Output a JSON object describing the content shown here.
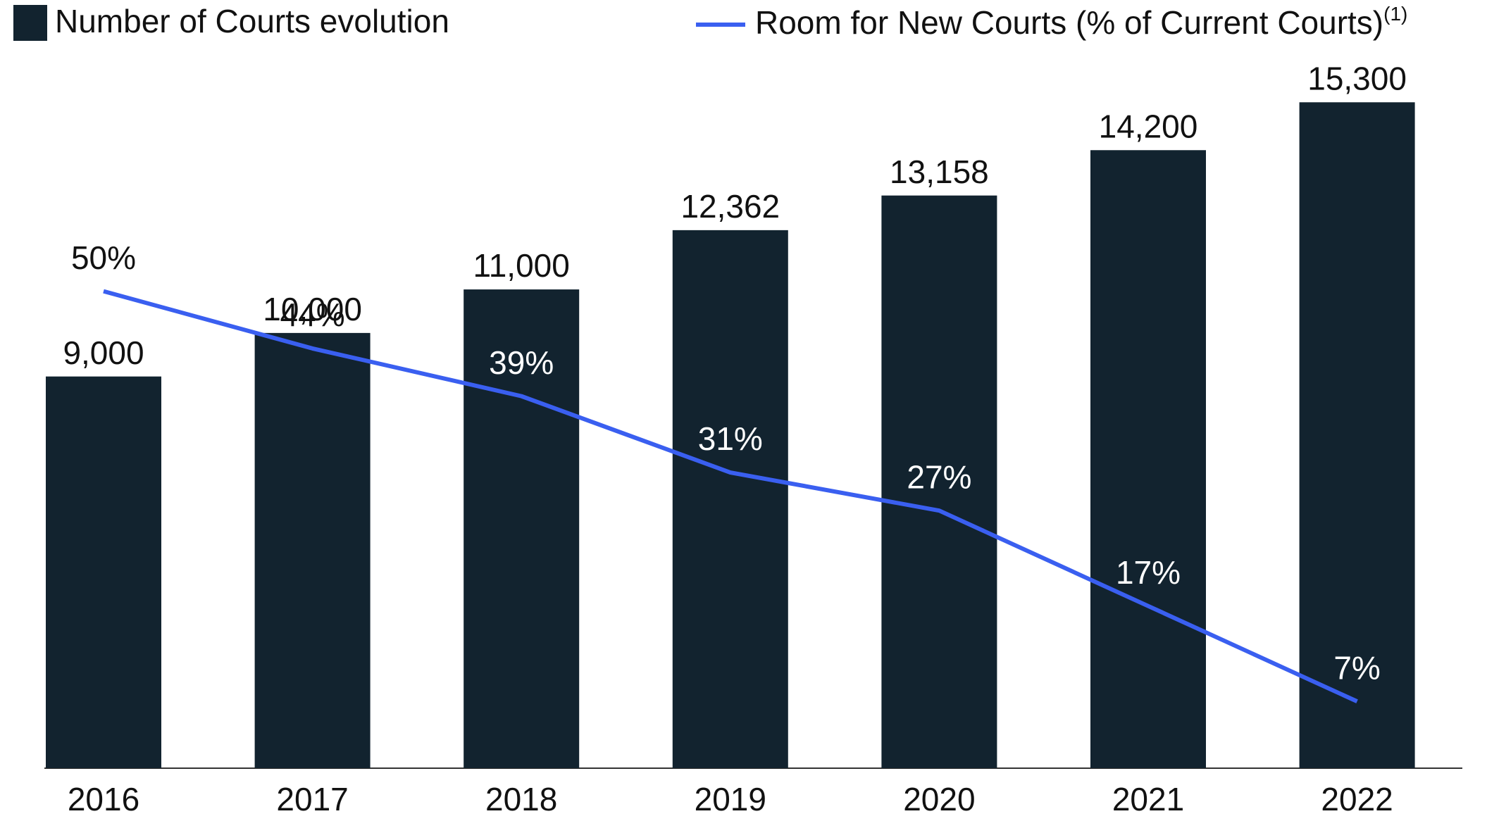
{
  "chart_data": {
    "type": "bar",
    "categories": [
      "2016",
      "2017",
      "2018",
      "2019",
      "2020",
      "2021",
      "2022"
    ],
    "series": [
      {
        "name": "Number of Courts evolution",
        "color": "#12232f",
        "type": "bar",
        "values": [
          9000,
          10000,
          11000,
          12362,
          13158,
          14200,
          15300
        ],
        "value_labels": [
          "9,000",
          "10,000",
          "11,000",
          "12,362",
          "13,158",
          "14,200",
          "15,300"
        ]
      },
      {
        "name": "Room for New Courts (% of Current Courts)",
        "color": "#3a5ff0",
        "type": "line",
        "axis": "y2",
        "values": [
          50,
          44,
          39,
          31,
          27,
          17,
          7
        ],
        "value_labels": [
          "50%",
          "44%",
          "39%",
          "31%",
          "27%",
          "17%",
          "7%"
        ]
      }
    ],
    "legend_footnote": "(1)",
    "ylim": [
      0,
      16000
    ],
    "y2lim": [
      0,
      73
    ]
  }
}
